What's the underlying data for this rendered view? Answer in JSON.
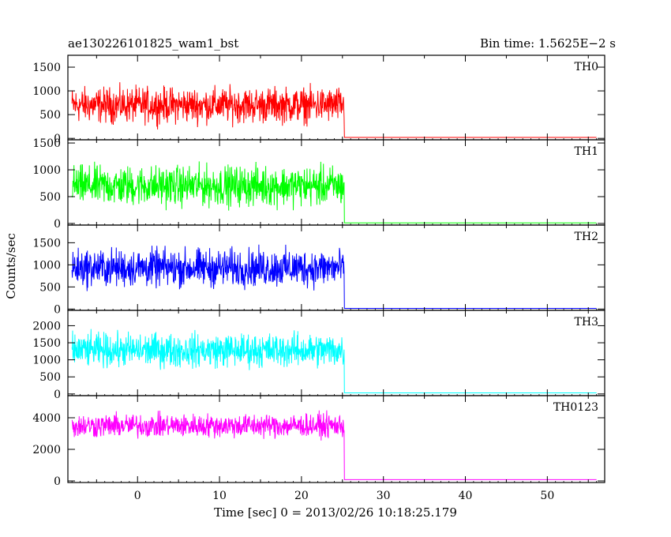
{
  "header": {
    "left_title": "ae130226101825_wam1_bst",
    "right_title": "Bin time: 1.5625E−2 s"
  },
  "chart_data": {
    "type": "line",
    "xlabel": "Time [sec] 0 = 2013/02/26 10:18:25.179",
    "ylabel": "Counts/sec",
    "x_range": [
      -8.5,
      57
    ],
    "x_ticks": [
      0,
      10,
      20,
      30,
      40,
      50
    ],
    "x_tick_labels": [
      "0",
      "10",
      "20",
      "30",
      "40",
      "50"
    ],
    "burst_end_time": 25.2,
    "grid": false,
    "panels": [
      {
        "name": "TH0",
        "color": "#ff0000",
        "ylim": [
          -30,
          1750
        ],
        "yticks": [
          0,
          500,
          1000,
          1500
        ],
        "ytick_labels": [
          "0",
          "500",
          "1000",
          "1500"
        ],
        "mean_before": 700,
        "spread_before": 450,
        "level_after": 20
      },
      {
        "name": "TH1",
        "color": "#00ff00",
        "ylim": [
          -30,
          1560
        ],
        "yticks": [
          0,
          500,
          1000,
          1500
        ],
        "ytick_labels": [
          "0",
          "500",
          "1000",
          "1500"
        ],
        "mean_before": 700,
        "spread_before": 450,
        "level_after": 10
      },
      {
        "name": "TH2",
        "color": "#0000ff",
        "ylim": [
          -30,
          1900
        ],
        "yticks": [
          0,
          500,
          1000,
          1500
        ],
        "ytick_labels": [
          "0",
          "500",
          "1000",
          "1500"
        ],
        "mean_before": 930,
        "spread_before": 520,
        "level_after": 15
      },
      {
        "name": "TH3",
        "color": "#00ffff",
        "ylim": [
          -50,
          2450
        ],
        "yticks": [
          0,
          500,
          1000,
          1500,
          2000
        ],
        "ytick_labels": [
          "0",
          "500",
          "1000",
          "1500",
          "2000"
        ],
        "mean_before": 1280,
        "spread_before": 600,
        "level_after": 30
      },
      {
        "name": "TH0123",
        "color": "#ff00ff",
        "ylim": [
          -100,
          5400
        ],
        "yticks": [
          0,
          2000,
          4000
        ],
        "ytick_labels": [
          "0",
          "2000",
          "4000"
        ],
        "mean_before": 3500,
        "spread_before": 900,
        "level_after": 80
      }
    ]
  }
}
